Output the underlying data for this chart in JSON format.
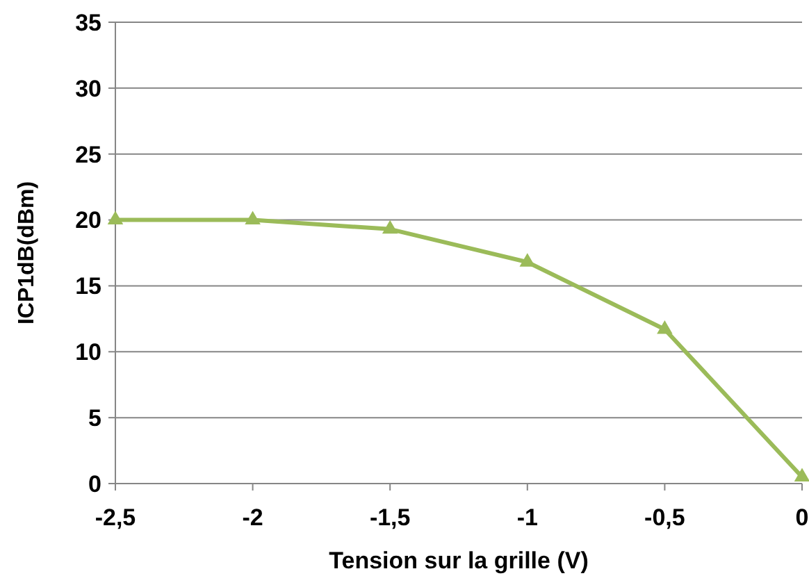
{
  "chart_data": {
    "type": "line",
    "xlabel": "Tension sur la grille (V)",
    "ylabel": "ICP1dB(dBm)",
    "x": [
      -2.5,
      -2,
      -1.5,
      -1,
      -0.5,
      0
    ],
    "series": [
      {
        "color": "#9bbb59",
        "values": [
          20,
          20,
          19.3,
          16.8,
          11.7,
          0.5
        ]
      }
    ],
    "xlim": [
      -2.5,
      0
    ],
    "xticks": [
      {
        "value": -2.5,
        "label": "-2,5"
      },
      -2,
      {
        "value": -1.5,
        "label": "-1,5"
      },
      -1,
      {
        "value": -0.5,
        "label": "-0,5"
      },
      0
    ],
    "ylim": [
      0,
      35
    ],
    "yticks": [
      0,
      5,
      10,
      15,
      20,
      25,
      30,
      35
    ],
    "grid": "y",
    "marker": "triangle",
    "line_style": "solid"
  }
}
